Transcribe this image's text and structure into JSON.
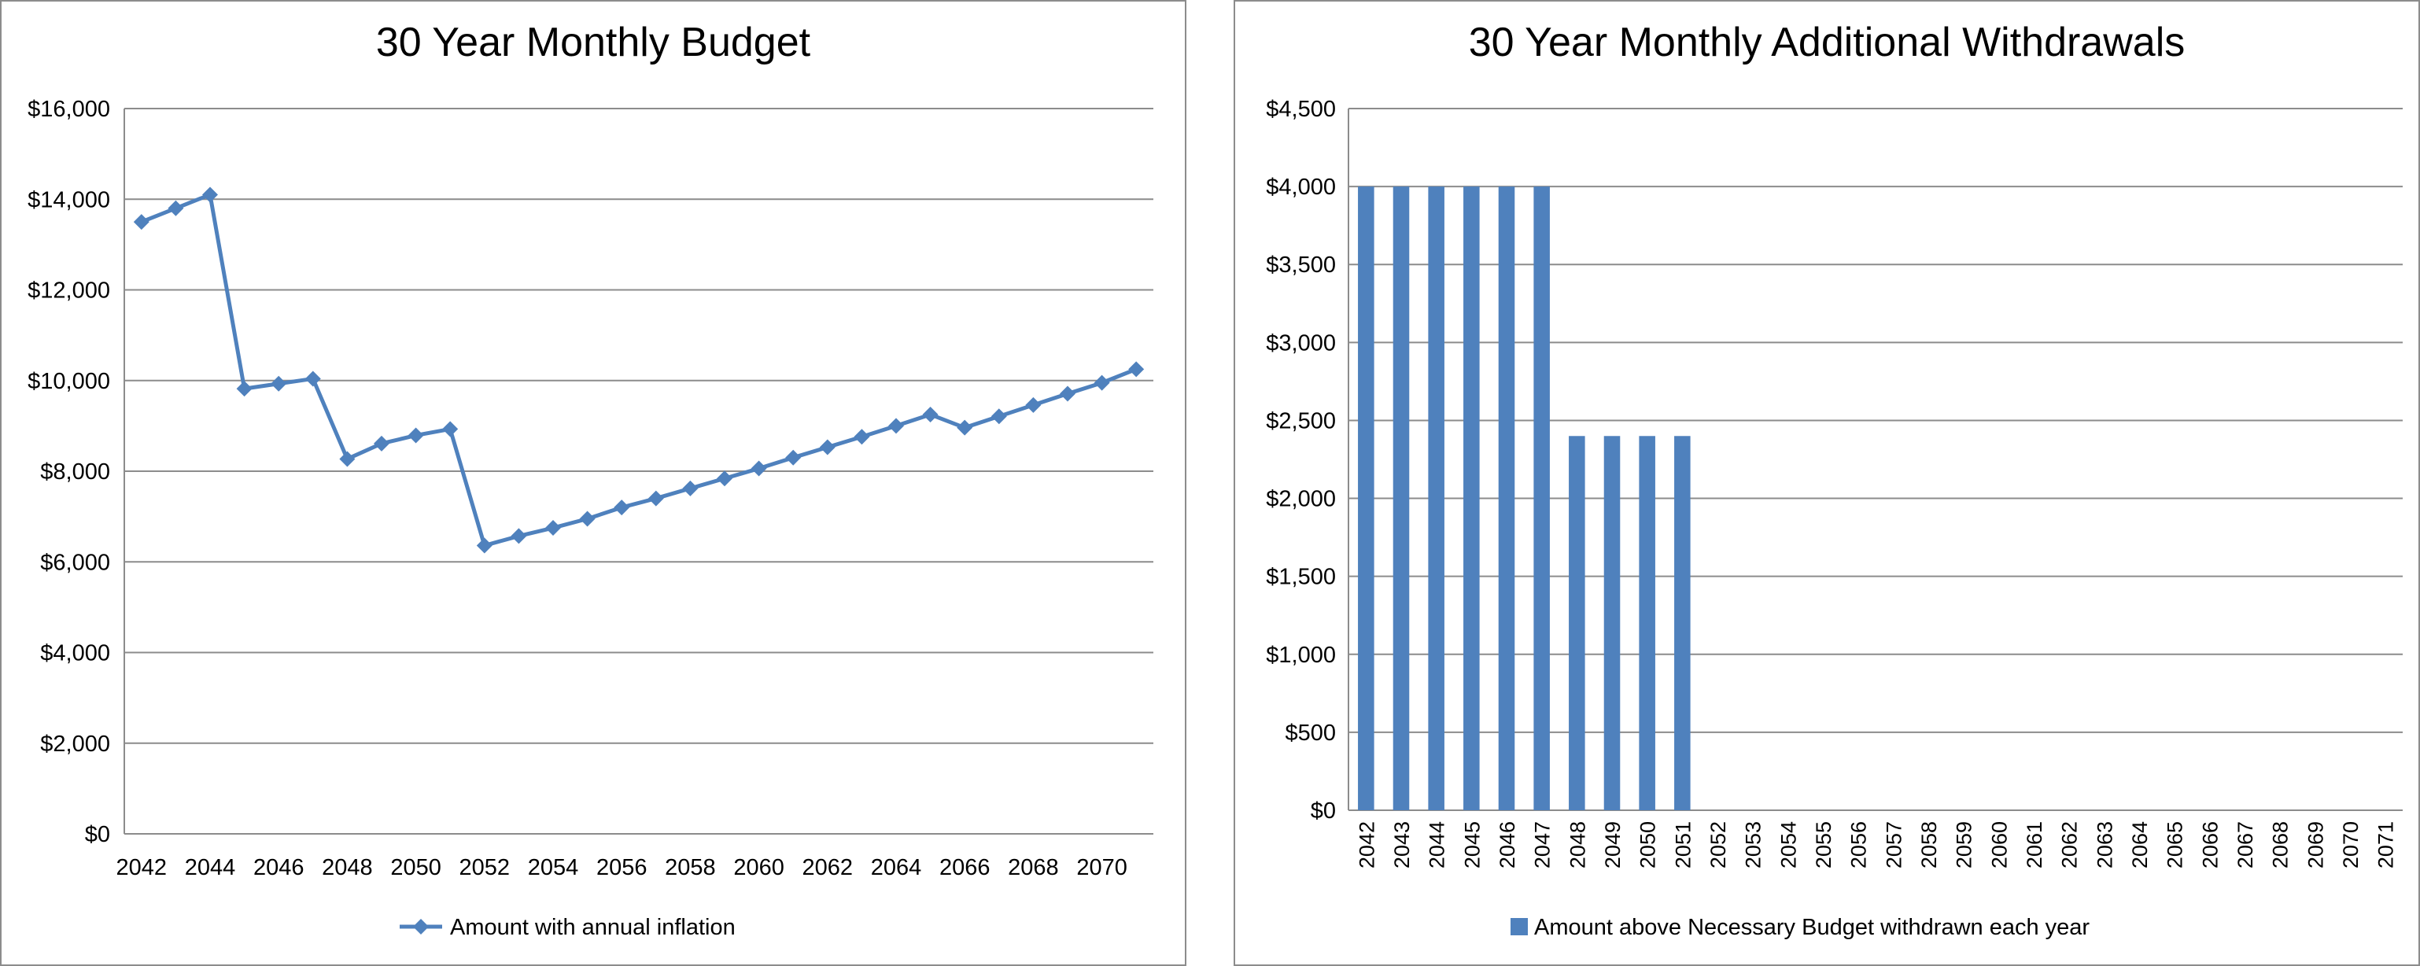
{
  "chart_data": [
    {
      "type": "line",
      "title": "30 Year Monthly Budget",
      "xlabel": "",
      "ylabel": "",
      "x": [
        2042,
        2043,
        2044,
        2045,
        2046,
        2047,
        2048,
        2049,
        2050,
        2051,
        2052,
        2053,
        2054,
        2055,
        2056,
        2057,
        2058,
        2059,
        2060,
        2061,
        2062,
        2063,
        2064,
        2065,
        2066,
        2067,
        2068,
        2069,
        2070,
        2071
      ],
      "x_tick_labels": [
        "2042",
        "2044",
        "2046",
        "2048",
        "2050",
        "2052",
        "2054",
        "2056",
        "2058",
        "2060",
        "2062",
        "2064",
        "2066",
        "2068",
        "2070"
      ],
      "ylim": [
        0,
        16000
      ],
      "y_tick_labels": [
        "$0",
        "$2,000",
        "$4,000",
        "$6,000",
        "$8,000",
        "$10,000",
        "$12,000",
        "$14,000",
        "$16,000"
      ],
      "grid": true,
      "legend_position": "bottom",
      "series": [
        {
          "name": "Amount with annual inflation",
          "color": "#4f81bd",
          "marker": "diamond",
          "values": [
            13500,
            13800,
            14100,
            9820,
            9930,
            10040,
            8270,
            8610,
            8790,
            8930,
            6360,
            6570,
            6750,
            6950,
            7200,
            7400,
            7620,
            7840,
            8060,
            8300,
            8530,
            8760,
            9000,
            9250,
            8960,
            9210,
            9460,
            9710,
            9950,
            10250
          ]
        }
      ]
    },
    {
      "type": "bar",
      "title": "30 Year Monthly Additional Withdrawals",
      "xlabel": "",
      "ylabel": "",
      "categories": [
        "2042",
        "2043",
        "2044",
        "2045",
        "2046",
        "2047",
        "2048",
        "2049",
        "2050",
        "2051",
        "2052",
        "2053",
        "2054",
        "2055",
        "2056",
        "2057",
        "2058",
        "2059",
        "2060",
        "2061",
        "2062",
        "2063",
        "2064",
        "2065",
        "2066",
        "2067",
        "2068",
        "2069",
        "2070",
        "2071"
      ],
      "ylim": [
        0,
        4500
      ],
      "y_tick_labels": [
        "$0",
        "$500",
        "$1,000",
        "$1,500",
        "$2,000",
        "$2,500",
        "$3,000",
        "$3,500",
        "$4,000",
        "$4,500"
      ],
      "grid": true,
      "legend_position": "bottom",
      "series": [
        {
          "name": "Amount above Necessary Budget withdrawn each year",
          "color": "#4f81bd",
          "values": [
            4000,
            4000,
            4000,
            4000,
            4000,
            4000,
            2400,
            2400,
            2400,
            2400,
            0,
            0,
            0,
            0,
            0,
            0,
            0,
            0,
            0,
            0,
            0,
            0,
            0,
            0,
            0,
            0,
            0,
            0,
            0,
            0
          ]
        }
      ]
    }
  ]
}
